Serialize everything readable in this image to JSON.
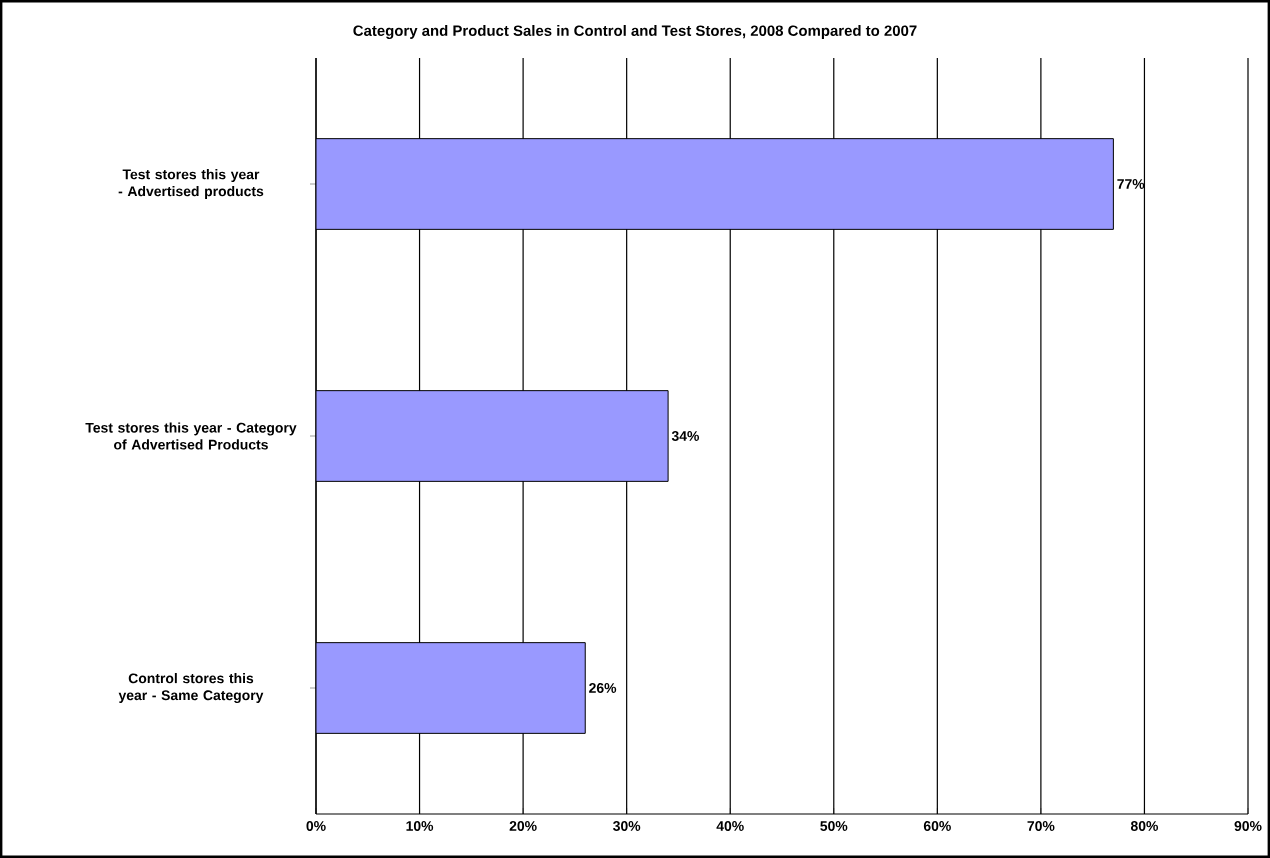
{
  "chart_data": {
    "type": "bar",
    "orientation": "horizontal",
    "title": "Category and Product Sales in Control and Test Stores, 2008 Compared to 2007",
    "categories": [
      "Test stores this year - Advertised products",
      "Test stores this year - Category of Advertised Products",
      "Control stores this year - Same Category"
    ],
    "values": [
      77,
      34,
      26
    ],
    "value_labels": [
      "77%",
      "34%",
      "26%"
    ],
    "color": "#9999ff",
    "xlim": [
      0,
      90
    ],
    "xticks": [
      {
        "value": 0,
        "label": "0%"
      },
      {
        "value": 10,
        "label": "10%"
      },
      {
        "value": 20,
        "label": "20%"
      },
      {
        "value": 30,
        "label": "30%"
      },
      {
        "value": 40,
        "label": "40%"
      },
      {
        "value": 50,
        "label": "50%"
      },
      {
        "value": 60,
        "label": "60%"
      },
      {
        "value": 70,
        "label": "70%"
      },
      {
        "value": 80,
        "label": "80%"
      },
      {
        "value": 90,
        "label": "90%"
      }
    ],
    "grid": "x"
  }
}
